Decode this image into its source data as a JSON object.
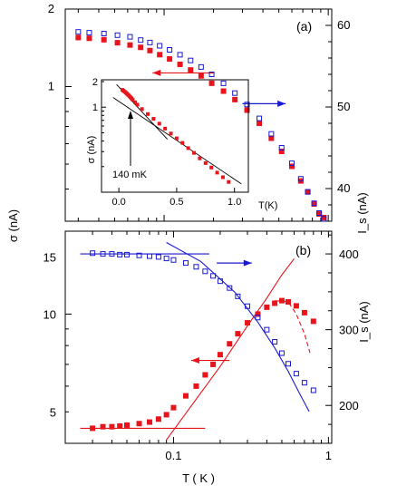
{
  "colors": {
    "red": "#e8141c",
    "blue": "#1a1ad0",
    "black": "#000000"
  },
  "chart_data": [
    {
      "panel": "a",
      "type": "scatter",
      "panel_label": "(a)",
      "xscale": "log",
      "xlim": [
        0.025,
        1.05
      ],
      "yleft": {
        "label": "σ (nA)",
        "scale": "log",
        "lim": [
          0.3,
          2.0
        ],
        "ticks": [
          {
            "v": 1,
            "t": "1"
          },
          {
            "v": 2,
            "t": "2"
          }
        ]
      },
      "yright": {
        "label": "I_s (nA)",
        "lim": [
          36,
          62
        ],
        "ticks": [
          {
            "v": 40,
            "t": "40"
          },
          {
            "v": 50,
            "t": "50"
          },
          {
            "v": 60,
            "t": "60"
          }
        ]
      },
      "series": [
        {
          "axis": "left",
          "marker": "filled-square",
          "color": "#e8141c",
          "x": [
            0.03,
            0.035,
            0.043,
            0.052,
            0.062,
            0.072,
            0.082,
            0.094,
            0.108,
            0.125,
            0.145,
            0.168,
            0.195,
            0.23,
            0.27,
            0.32,
            0.38,
            0.45,
            0.52,
            0.6,
            0.68,
            0.75,
            0.82,
            0.88,
            0.94
          ],
          "y": [
            1.55,
            1.54,
            1.52,
            1.48,
            1.45,
            1.42,
            1.38,
            1.33,
            1.28,
            1.22,
            1.16,
            1.1,
            1.03,
            0.96,
            0.89,
            0.81,
            0.72,
            0.63,
            0.56,
            0.49,
            0.43,
            0.39,
            0.35,
            0.32,
            0.31
          ]
        },
        {
          "axis": "right",
          "marker": "open-square",
          "color": "#1a1ad0",
          "x": [
            0.03,
            0.035,
            0.043,
            0.052,
            0.062,
            0.072,
            0.082,
            0.094,
            0.108,
            0.125,
            0.145,
            0.168,
            0.195,
            0.23,
            0.27,
            0.32,
            0.38,
            0.45,
            0.52,
            0.6,
            0.68,
            0.75,
            0.82,
            0.88,
            0.94
          ],
          "y": [
            59.2,
            59.1,
            59.0,
            58.8,
            58.6,
            58.2,
            57.9,
            57.5,
            57.0,
            56.4,
            55.7,
            54.9,
            54.0,
            52.9,
            51.7,
            50.3,
            48.6,
            46.7,
            45.0,
            43.1,
            41.2,
            39.6,
            38.2,
            37.0,
            36.3
          ]
        }
      ],
      "annotation_arrows": [
        {
          "direction": "left",
          "color": "#e8141c",
          "x_from": 0.2,
          "x_to": 0.085,
          "y_left": 1.13
        },
        {
          "direction": "right",
          "color": "#1a1ad0",
          "x_from": 0.3,
          "x_to": 0.55,
          "y_right": 50.4
        }
      ]
    },
    {
      "panel": "a-inset",
      "type": "scatter",
      "xlabel": "T(K)",
      "ylabel": "σ (nA)",
      "xlim": [
        -0.15,
        1.12
      ],
      "ylim": [
        0.1,
        2.1
      ],
      "yscale": "log",
      "xticks": [
        {
          "v": 0,
          "t": "0.0"
        },
        {
          "v": 0.5,
          "t": "0.5"
        },
        {
          "v": 1.0,
          "t": "1.0"
        }
      ],
      "yticks": [
        {
          "v": 1,
          "t": "1"
        },
        {
          "v": 2,
          "t": "2"
        }
      ],
      "annotation": "140 mK",
      "series": [
        {
          "marker": "filled-square",
          "color": "#e8141c",
          "x": [
            0.03,
            0.04,
            0.05,
            0.06,
            0.07,
            0.08,
            0.09,
            0.1,
            0.11,
            0.12,
            0.14,
            0.16,
            0.2,
            0.25,
            0.3,
            0.35,
            0.4,
            0.45,
            0.5,
            0.55,
            0.6,
            0.65,
            0.7,
            0.75,
            0.8,
            0.85,
            0.9,
            0.95
          ],
          "y": [
            1.6,
            1.56,
            1.52,
            1.48,
            1.44,
            1.4,
            1.36,
            1.31,
            1.27,
            1.22,
            1.14,
            1.07,
            0.95,
            0.83,
            0.73,
            0.64,
            0.56,
            0.49,
            0.43,
            0.38,
            0.33,
            0.29,
            0.25,
            0.22,
            0.195,
            0.17,
            0.15,
            0.132
          ]
        }
      ],
      "fit_lines": [
        {
          "x": [
            -0.02,
            0.42
          ],
          "y": [
            1.85,
            0.42
          ]
        },
        {
          "x": [
            -0.05,
            1.06
          ],
          "y": [
            1.3,
            0.125
          ]
        }
      ]
    },
    {
      "panel": "b",
      "type": "scatter",
      "panel_label": "(b)",
      "xscale": "log",
      "xlim": [
        0.02,
        1.05
      ],
      "xlabel": "T ( K )",
      "xticks": [
        {
          "v": 0.1,
          "t": "0.1"
        },
        {
          "v": 1,
          "t": "1"
        }
      ],
      "yleft": {
        "label": "σ (nA)",
        "scale": "log",
        "lim": [
          4.0,
          18.0
        ],
        "ticks": [
          {
            "v": 5,
            "t": "5"
          },
          {
            "v": 10,
            "t": "10"
          },
          {
            "v": 15,
            "t": "15"
          }
        ]
      },
      "yright": {
        "label": "I_s (nA)",
        "lim": [
          150,
          430
        ],
        "ticks": [
          {
            "v": 200,
            "t": "200"
          },
          {
            "v": 300,
            "t": "300"
          },
          {
            "v": 400,
            "t": "400"
          }
        ]
      },
      "series": [
        {
          "axis": "left",
          "marker": "filled-square",
          "color": "#e8141c",
          "x": [
            0.03,
            0.035,
            0.04,
            0.045,
            0.05,
            0.06,
            0.07,
            0.08,
            0.09,
            0.1,
            0.12,
            0.14,
            0.16,
            0.18,
            0.2,
            0.23,
            0.26,
            0.3,
            0.35,
            0.4,
            0.45,
            0.5,
            0.55,
            0.62,
            0.7,
            0.8
          ],
          "y": [
            4.45,
            4.5,
            4.5,
            4.52,
            4.55,
            4.6,
            4.65,
            4.75,
            4.9,
            5.15,
            5.6,
            6.0,
            6.5,
            7.0,
            7.5,
            8.1,
            8.7,
            9.4,
            10.0,
            10.5,
            10.8,
            11.0,
            10.9,
            10.6,
            10.1,
            9.5
          ]
        },
        {
          "axis": "right",
          "marker": "open-square",
          "color": "#1a1ad0",
          "x": [
            0.03,
            0.035,
            0.04,
            0.045,
            0.05,
            0.06,
            0.07,
            0.08,
            0.09,
            0.1,
            0.12,
            0.14,
            0.16,
            0.18,
            0.2,
            0.23,
            0.26,
            0.3,
            0.35,
            0.4,
            0.45,
            0.5,
            0.55,
            0.62,
            0.7,
            0.8
          ],
          "y": [
            401,
            400,
            400,
            399,
            399,
            398,
            397,
            396,
            394,
            392,
            388,
            383,
            377,
            371,
            364,
            355,
            344,
            331,
            316,
            300,
            284,
            269,
            255,
            242,
            230,
            220
          ]
        }
      ],
      "fit_lines": [
        {
          "axis": "left",
          "color": "#e8141c",
          "style": "solid",
          "x": [
            0.025,
            0.16
          ],
          "y": [
            4.45,
            4.45
          ]
        },
        {
          "axis": "left",
          "color": "#e8141c",
          "style": "solid",
          "x": [
            0.09,
            0.2,
            0.3,
            0.4,
            0.5,
            0.6
          ],
          "y": [
            4.1,
            6.9,
            9.2,
            11.2,
            13.2,
            14.8
          ]
        },
        {
          "axis": "left",
          "color": "#e8141c",
          "style": "dashed",
          "x": [
            0.45,
            0.55,
            0.62,
            0.7,
            0.76
          ],
          "y": [
            11.0,
            10.9,
            10.0,
            8.7,
            7.6
          ]
        },
        {
          "axis": "right",
          "color": "#1a1ad0",
          "style": "solid",
          "x": [
            0.025,
            0.17
          ],
          "y": [
            400,
            400
          ]
        },
        {
          "axis": "right",
          "color": "#1a1ad0",
          "style": "solid",
          "x": [
            0.09,
            0.15,
            0.25,
            0.35,
            0.45,
            0.55,
            0.65,
            0.75
          ],
          "y": [
            415,
            390,
            349,
            310,
            276,
            245,
            216,
            192
          ]
        }
      ],
      "annotation_arrows": [
        {
          "direction": "right",
          "color": "#1a1ad0",
          "x_from": 0.19,
          "x_to": 0.32,
          "y_right": 388
        },
        {
          "direction": "left",
          "color": "#e8141c",
          "x_from": 0.23,
          "x_to": 0.13,
          "y_left": 7.2
        }
      ]
    }
  ]
}
